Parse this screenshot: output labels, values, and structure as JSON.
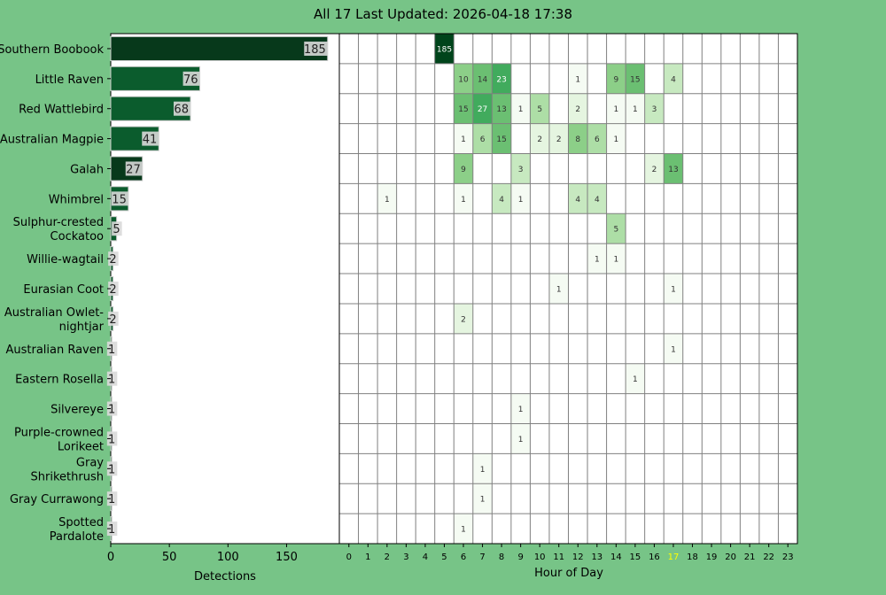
{
  "chart_data": [
    {
      "type": "bar",
      "orientation": "horizontal",
      "title": "All 17 Last Updated: 2026-04-18 17:38",
      "xlabel": "Detections",
      "xlim": [
        0,
        195
      ],
      "xticks": [
        0,
        50,
        100,
        150
      ],
      "categories": [
        "Southern Boobook",
        "Little Raven",
        "Red Wattlebird",
        "Australian Magpie",
        "Galah",
        "Whimbrel",
        "Sulphur-crested Cockatoo",
        "Willie-wagtail",
        "Eurasian Coot",
        "Australian Owlet-nightjar",
        "Australian Raven",
        "Eastern Rosella",
        "Silvereye",
        "Purple-crowned Lorikeet",
        "Gray Shrikethrush",
        "Gray Currawong",
        "Spotted Pardalote"
      ],
      "category_lines": [
        [
          "Southern Boobook"
        ],
        [
          "Little Raven"
        ],
        [
          "Red Wattlebird"
        ],
        [
          "Australian Magpie"
        ],
        [
          "Galah"
        ],
        [
          "Whimbrel"
        ],
        [
          "Sulphur-crested",
          "Cockatoo"
        ],
        [
          "Willie-wagtail"
        ],
        [
          "Eurasian Coot"
        ],
        [
          "Australian Owlet-",
          "nightjar"
        ],
        [
          "Australian Raven"
        ],
        [
          "Eastern Rosella"
        ],
        [
          "Silvereye"
        ],
        [
          "Purple-crowned",
          "Lorikeet"
        ],
        [
          "Gray",
          "Shrikethrush"
        ],
        [
          "Gray Currawong"
        ],
        [
          "Spotted",
          "Pardalote"
        ]
      ],
      "values": [
        185,
        76,
        68,
        41,
        27,
        15,
        5,
        2,
        2,
        2,
        1,
        1,
        1,
        1,
        1,
        1,
        1
      ],
      "bar_colors": [
        "#07391b",
        "#0b5c2d",
        "#0b5c2d",
        "#0b5c2d",
        "#07391b",
        "#0b5c2d",
        "#0b5c2d",
        "#0b5c2d",
        "#0b5c2d",
        "#0b5c2d",
        "#0b5c2d",
        "#0b5c2d",
        "#0b5c2d",
        "#0b5c2d",
        "#0b5c2d",
        "#0b5c2d",
        "#0b5c2d"
      ]
    },
    {
      "type": "heatmap",
      "xlabel": "Hour of Day",
      "hours": [
        0,
        1,
        2,
        3,
        4,
        5,
        6,
        7,
        8,
        9,
        10,
        11,
        12,
        13,
        14,
        15,
        16,
        17,
        18,
        19,
        20,
        21,
        22,
        23
      ],
      "highlight_hour": 17,
      "highlight_color": "#ffff00",
      "colormap": "Greens",
      "cells": [
        {
          "row": 0,
          "hour": 5,
          "value": 185
        },
        {
          "row": 1,
          "hour": 6,
          "value": 10
        },
        {
          "row": 1,
          "hour": 7,
          "value": 14
        },
        {
          "row": 1,
          "hour": 8,
          "value": 23
        },
        {
          "row": 1,
          "hour": 12,
          "value": 1
        },
        {
          "row": 1,
          "hour": 14,
          "value": 9
        },
        {
          "row": 1,
          "hour": 15,
          "value": 15
        },
        {
          "row": 1,
          "hour": 17,
          "value": 4
        },
        {
          "row": 2,
          "hour": 6,
          "value": 15
        },
        {
          "row": 2,
          "hour": 7,
          "value": 27
        },
        {
          "row": 2,
          "hour": 8,
          "value": 13
        },
        {
          "row": 2,
          "hour": 9,
          "value": 1
        },
        {
          "row": 2,
          "hour": 10,
          "value": 5
        },
        {
          "row": 2,
          "hour": 12,
          "value": 2
        },
        {
          "row": 2,
          "hour": 14,
          "value": 1
        },
        {
          "row": 2,
          "hour": 15,
          "value": 1
        },
        {
          "row": 2,
          "hour": 16,
          "value": 3
        },
        {
          "row": 3,
          "hour": 6,
          "value": 1
        },
        {
          "row": 3,
          "hour": 7,
          "value": 6
        },
        {
          "row": 3,
          "hour": 8,
          "value": 15
        },
        {
          "row": 3,
          "hour": 10,
          "value": 2
        },
        {
          "row": 3,
          "hour": 11,
          "value": 2
        },
        {
          "row": 3,
          "hour": 12,
          "value": 8
        },
        {
          "row": 3,
          "hour": 13,
          "value": 6
        },
        {
          "row": 3,
          "hour": 14,
          "value": 1
        },
        {
          "row": 4,
          "hour": 6,
          "value": 9
        },
        {
          "row": 4,
          "hour": 9,
          "value": 3
        },
        {
          "row": 4,
          "hour": 16,
          "value": 2
        },
        {
          "row": 4,
          "hour": 17,
          "value": 13
        },
        {
          "row": 5,
          "hour": 2,
          "value": 1
        },
        {
          "row": 5,
          "hour": 6,
          "value": 1
        },
        {
          "row": 5,
          "hour": 8,
          "value": 4
        },
        {
          "row": 5,
          "hour": 9,
          "value": 1
        },
        {
          "row": 5,
          "hour": 12,
          "value": 4
        },
        {
          "row": 5,
          "hour": 13,
          "value": 4
        },
        {
          "row": 6,
          "hour": 14,
          "value": 5
        },
        {
          "row": 7,
          "hour": 13,
          "value": 1
        },
        {
          "row": 7,
          "hour": 14,
          "value": 1
        },
        {
          "row": 8,
          "hour": 11,
          "value": 1
        },
        {
          "row": 8,
          "hour": 17,
          "value": 1
        },
        {
          "row": 9,
          "hour": 6,
          "value": 2
        },
        {
          "row": 10,
          "hour": 17,
          "value": 1
        },
        {
          "row": 11,
          "hour": 15,
          "value": 1
        },
        {
          "row": 12,
          "hour": 9,
          "value": 1
        },
        {
          "row": 13,
          "hour": 9,
          "value": 1
        },
        {
          "row": 14,
          "hour": 7,
          "value": 1
        },
        {
          "row": 15,
          "hour": 7,
          "value": 1
        },
        {
          "row": 16,
          "hour": 6,
          "value": 1
        }
      ]
    }
  ],
  "colors": {
    "background": "#77c487",
    "grid": "#808080"
  }
}
